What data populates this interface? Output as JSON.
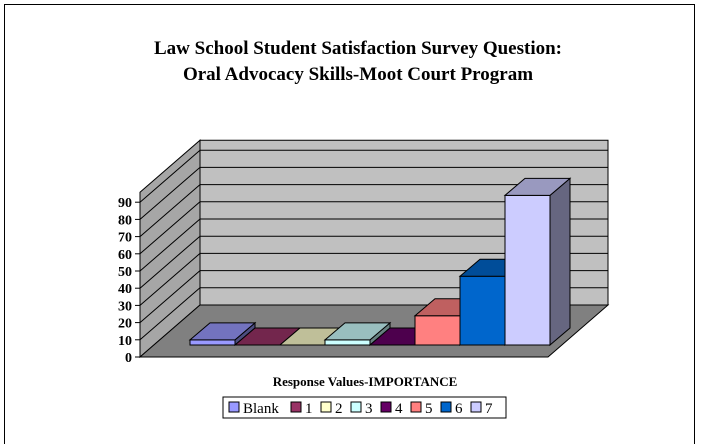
{
  "chart_data": {
    "type": "bar",
    "style": "3d-column",
    "title": "Law School Student Satisfaction Survey Question: Oral Advocacy Skills-Moot Court Program",
    "title_lines": [
      "Law School Student Satisfaction Survey Question:",
      "Oral Advocacy Skills-Moot Court Program"
    ],
    "xlabel": "Response Values-IMPORTANCE",
    "ylabel": "",
    "ylim": [
      0,
      90
    ],
    "yticks": [
      0,
      10,
      20,
      30,
      40,
      50,
      60,
      70,
      80,
      90
    ],
    "grid": true,
    "legend_position": "bottom",
    "categories": [
      "Blank",
      "1",
      "2",
      "3",
      "4",
      "5",
      "6",
      "7"
    ],
    "values": [
      3,
      0,
      0,
      3,
      0,
      17,
      40,
      87
    ],
    "colors": {
      "Blank": "#9999ff",
      "1": "#993366",
      "2": "#ffffcc",
      "3": "#ccffff",
      "4": "#660066",
      "5": "#ff8080",
      "6": "#0066cc",
      "7": "#ccccff"
    }
  }
}
